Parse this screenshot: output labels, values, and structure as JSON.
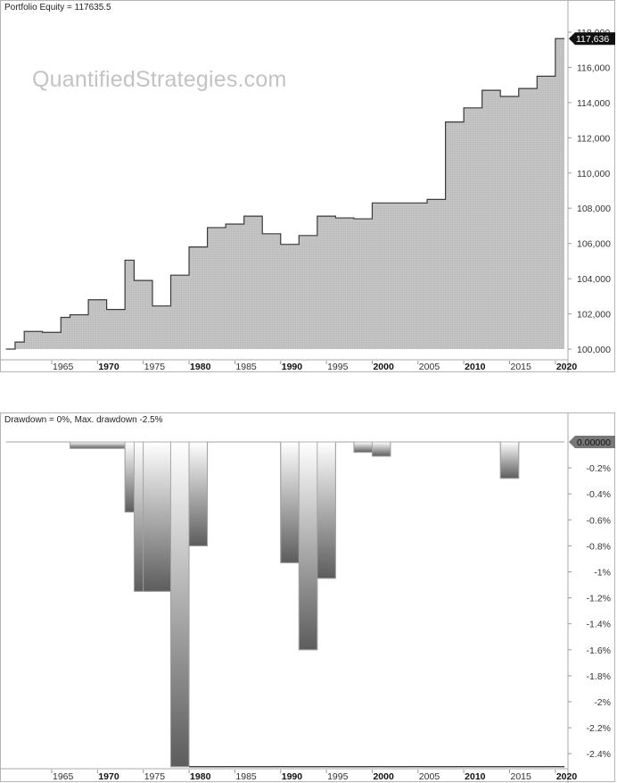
{
  "equity_panel": {
    "title": "Portfolio Equity = 117635.5",
    "watermark": "QuantifiedStrategies.com",
    "last_value_badge": "117,636",
    "y_ticks": [
      "118,000",
      "116,000",
      "114,000",
      "112,000",
      "110,000",
      "108,000",
      "106,000",
      "104,000",
      "102,000",
      "100,000"
    ]
  },
  "drawdown_panel": {
    "title": "Drawdown = 0%, Max. drawdown -2.5%",
    "last_value_badge": "0.00000",
    "y_ticks": [
      "-0.2%",
      "-0.4%",
      "-0.6%",
      "-0.8%",
      "-1%",
      "-1.2%",
      "-1.4%",
      "-1.6%",
      "-1.8%",
      "-2%",
      "-2.2%",
      "-2.4%"
    ]
  },
  "x_axis": {
    "labels": [
      {
        "text": "1965",
        "bold": false
      },
      {
        "text": "1970",
        "bold": true
      },
      {
        "text": "1975",
        "bold": false
      },
      {
        "text": "1980",
        "bold": true
      },
      {
        "text": "1985",
        "bold": false
      },
      {
        "text": "1990",
        "bold": true
      },
      {
        "text": "1995",
        "bold": false
      },
      {
        "text": "2000",
        "bold": true
      },
      {
        "text": "2005",
        "bold": false
      },
      {
        "text": "2010",
        "bold": true
      },
      {
        "text": "2015",
        "bold": false
      },
      {
        "text": "2020",
        "bold": true
      }
    ]
  },
  "chart_data": [
    {
      "type": "area",
      "title": "Portfolio Equity = 117635.5",
      "xlabel": "",
      "ylabel": "",
      "ylim": [
        99000,
        118200
      ],
      "grid": false,
      "step": true,
      "x": [
        1960,
        1961,
        1962,
        1964,
        1966,
        1967,
        1969,
        1971,
        1973,
        1974,
        1976,
        1978,
        1980,
        1982,
        1984,
        1986,
        1988,
        1990,
        1992,
        1994,
        1996,
        1998,
        2000,
        2002,
        2006,
        2008,
        2010,
        2012,
        2014,
        2016,
        2018,
        2020
      ],
      "values": [
        100000,
        100400,
        101000,
        100950,
        101800,
        101950,
        102800,
        102250,
        105050,
        103900,
        102450,
        104200,
        105800,
        106900,
        107100,
        107550,
        106550,
        105950,
        106450,
        107550,
        107450,
        107400,
        108300,
        108300,
        108500,
        112900,
        113700,
        114700,
        114350,
        114800,
        115500,
        117635.5
      ]
    },
    {
      "type": "area",
      "title": "Drawdown = 0%, Max. drawdown -2.5%",
      "xlabel": "",
      "ylabel": "",
      "ylim": [
        -2.6,
        0.1
      ],
      "grid": false,
      "step": true,
      "x": [
        1960,
        1967,
        1973,
        1974,
        1975,
        1978,
        1980,
        1982,
        1990,
        1992,
        1994,
        1996,
        1998,
        2000,
        2002,
        2014,
        2016,
        2020
      ],
      "values": [
        0,
        -0.05,
        -0.54,
        -1.15,
        -1.15,
        -2.5,
        -0.8,
        0,
        -0.93,
        -1.6,
        -1.05,
        0,
        -0.08,
        -0.11,
        0,
        -0.28,
        0,
        0
      ]
    }
  ]
}
